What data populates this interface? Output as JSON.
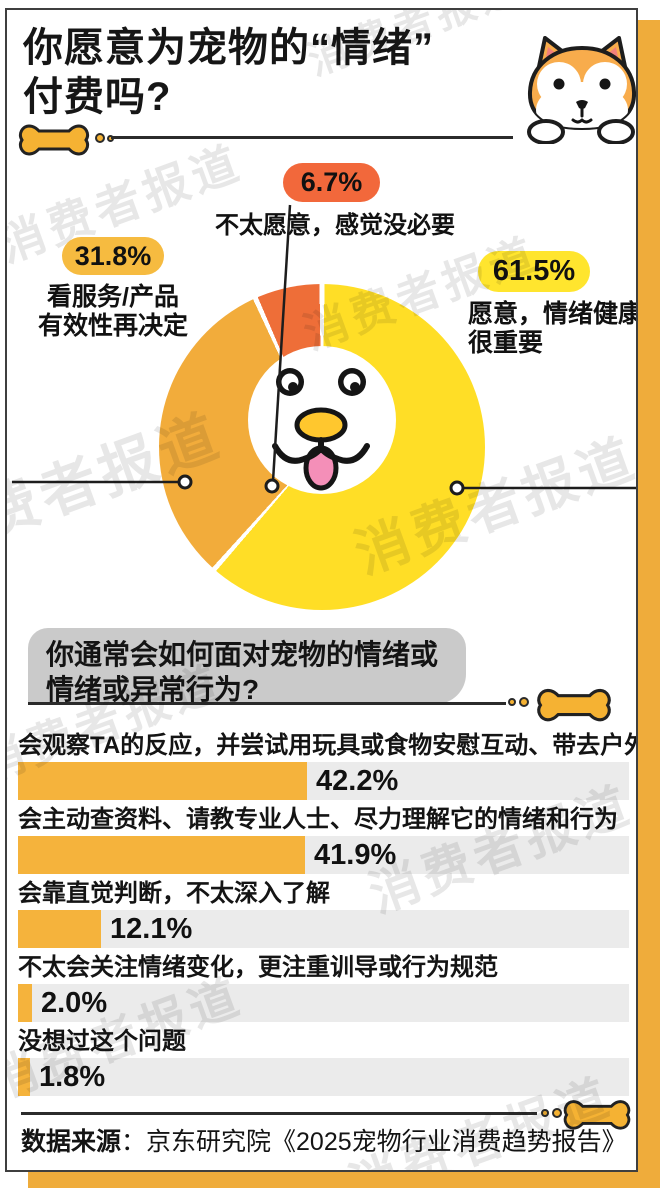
{
  "page": {
    "title_line1": "你愿意为宠物的“情绪”",
    "title_line2": "付费吗?"
  },
  "watermark": {
    "text": "消费者报道"
  },
  "colors": {
    "slice_yellow": "#FFDE26",
    "slice_amber": "#F2AC3B",
    "slice_orange": "#EE6E38",
    "badge_orange": "#F2683B",
    "badge_amber": "#F6BB40",
    "badge_yellow": "#FFE52E",
    "bar_fill": "#F5B33C",
    "bar_track": "#EBEBEB",
    "backdrop": "#EFAC3B",
    "gray_box": "#CACACA"
  },
  "pie_callouts": [
    {
      "pct": "6.7%",
      "line1": "不太愿意，感觉没必要",
      "line2": ""
    },
    {
      "pct": "31.8%",
      "line1": "看服务/产品",
      "line2": "有效性再决定"
    },
    {
      "pct": "61.5%",
      "line1": "愿意，情绪健康",
      "line2": "很重要"
    }
  ],
  "section2": {
    "title_line1": "你通常会如何面对宠物的情绪或",
    "title_line2": "情绪或异常行为?"
  },
  "footer": {
    "source_label": "数据来源",
    "source_text": "：京东研究院《2025宠物行业消费趋势报告》"
  },
  "chart_data": [
    {
      "type": "pie",
      "title": "你愿意为宠物的“情绪”付费吗?",
      "donut": true,
      "slices": [
        {
          "label": "愿意，情绪健康很重要",
          "value": 61.5,
          "color": "#FFDE26"
        },
        {
          "label": "看服务/产品有效性再决定",
          "value": 31.8,
          "color": "#F2AC3B"
        },
        {
          "label": "不太愿意，感觉没必要",
          "value": 6.7,
          "color": "#EE6E38"
        }
      ]
    },
    {
      "type": "bar",
      "title": "你通常会如何面对宠物的情绪或情绪或异常行为?",
      "orientation": "horizontal",
      "categories": [
        "会观察TA的反应，并尝试用玩具或食物安慰互动、带去户外放松等",
        "会主动查资料、请教专业人士、尽力理解它的情绪和行为",
        "会靠直觉判断，不太深入了解",
        "不太会关注情绪变化，更注重训导或行为规范",
        "没想过这个问题"
      ],
      "values": [
        42.2,
        41.9,
        12.1,
        2.0,
        1.8
      ],
      "value_labels": [
        "42.2%",
        "41.9%",
        "12.1%",
        "2.0%",
        "1.8%"
      ],
      "xlim": [
        0,
        90
      ]
    }
  ]
}
